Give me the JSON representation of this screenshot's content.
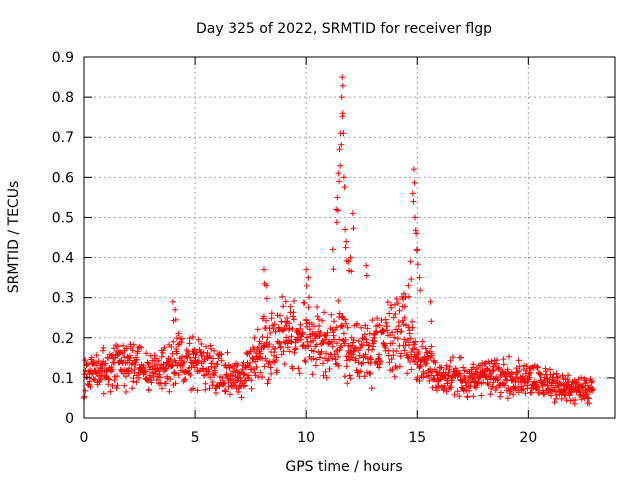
{
  "chart_data": {
    "type": "scatter",
    "title": "Day 325 of 2022, SRMTID for receiver flgp",
    "xlabel": "GPS time / hours",
    "ylabel": "SRMTID / TECUs",
    "xlim": [
      0,
      23.9
    ],
    "ylim": [
      0,
      0.9
    ],
    "x_ticks": [
      0,
      5,
      10,
      15,
      20
    ],
    "x_tick_labels": [
      "0",
      "5",
      "10",
      "15",
      "20"
    ],
    "y_ticks": [
      0,
      0.1,
      0.2,
      0.3,
      0.4,
      0.5,
      0.6,
      0.7,
      0.8,
      0.9
    ],
    "y_tick_labels": [
      "0",
      "0.1",
      "0.2",
      "0.3",
      "0.4",
      "0.5",
      "0.6",
      "0.7",
      "0.8",
      "0.9"
    ],
    "grid": true,
    "marker": "+",
    "color": "#ff0000",
    "series": [
      {
        "name": "SRMTID",
        "baseline_profile": [
          [
            0,
            0.11
          ],
          [
            1,
            0.12
          ],
          [
            2,
            0.13
          ],
          [
            3,
            0.11
          ],
          [
            4,
            0.14
          ],
          [
            4.2,
            0.17
          ],
          [
            5,
            0.14
          ],
          [
            6,
            0.12
          ],
          [
            7,
            0.1
          ],
          [
            8,
            0.17
          ],
          [
            9,
            0.2
          ],
          [
            10,
            0.2
          ],
          [
            11,
            0.19
          ],
          [
            11.5,
            0.2
          ],
          [
            12,
            0.16
          ],
          [
            13,
            0.16
          ],
          [
            14,
            0.21
          ],
          [
            14.5,
            0.22
          ],
          [
            15,
            0.14
          ],
          [
            16,
            0.11
          ],
          [
            17,
            0.1
          ],
          [
            18,
            0.1
          ],
          [
            19,
            0.1
          ],
          [
            20,
            0.1
          ],
          [
            21,
            0.08
          ],
          [
            22,
            0.07
          ],
          [
            22.9,
            0.07
          ]
        ],
        "peak_points": [
          [
            4.0,
            0.29
          ],
          [
            4.1,
            0.27
          ],
          [
            8.1,
            0.37
          ],
          [
            8.2,
            0.33
          ],
          [
            10.0,
            0.37
          ],
          [
            10.1,
            0.35
          ],
          [
            11.2,
            0.42
          ],
          [
            11.35,
            0.52
          ],
          [
            11.4,
            0.55
          ],
          [
            11.45,
            0.61
          ],
          [
            11.5,
            0.67
          ],
          [
            11.55,
            0.71
          ],
          [
            11.6,
            0.8
          ],
          [
            11.62,
            0.85
          ],
          [
            11.65,
            0.76
          ],
          [
            11.7,
            0.6
          ],
          [
            11.75,
            0.47
          ],
          [
            11.8,
            0.44
          ],
          [
            11.9,
            0.39
          ],
          [
            12.0,
            0.4
          ],
          [
            12.1,
            0.51
          ],
          [
            12.7,
            0.38
          ],
          [
            14.4,
            0.31
          ],
          [
            14.6,
            0.33
          ],
          [
            14.7,
            0.39
          ],
          [
            14.8,
            0.56
          ],
          [
            14.85,
            0.62
          ],
          [
            14.9,
            0.5
          ],
          [
            14.95,
            0.46
          ],
          [
            15.0,
            0.42
          ],
          [
            15.1,
            0.35
          ],
          [
            15.6,
            0.29
          ]
        ]
      }
    ]
  }
}
